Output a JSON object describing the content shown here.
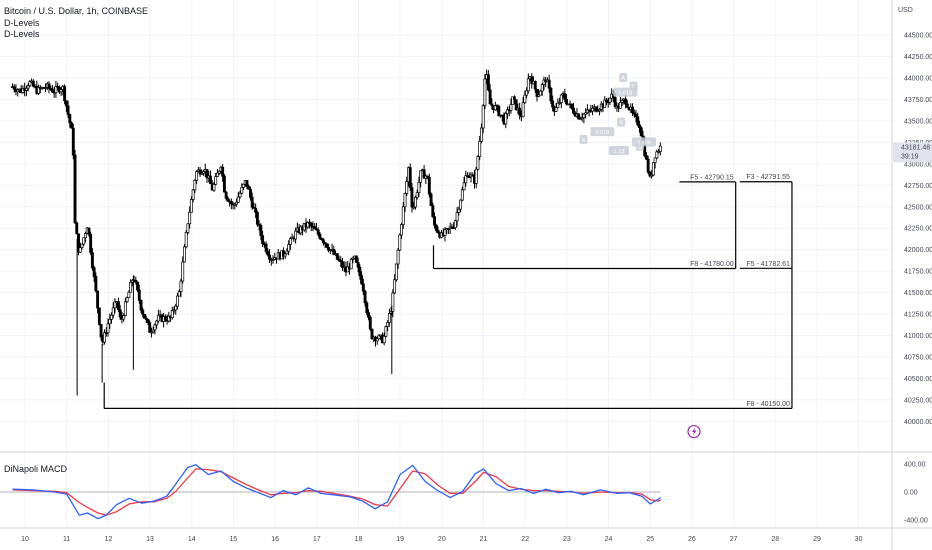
{
  "header": {
    "symbol": "Bitcoin / U.S. Dollar, 1h, COINBASE",
    "indicator_1": "D-Levels",
    "indicator_2": "D-Levels"
  },
  "macd_label": "DiNapoli MACD",
  "currency": "USD",
  "colors": {
    "candle": "#000000",
    "level_line": "#000000",
    "red_label": "#f23645",
    "green_label": "#089981",
    "macd_blue": "#2962ff",
    "macd_red": "#f23645",
    "grid": "#f0f3fa",
    "last_price_bg": "#e0e3eb",
    "alert_icon": "#9c27b0"
  },
  "chart_data": {
    "type": "candlestick",
    "ylim": [
      39700,
      44700
    ],
    "y_ticks": [
      "44500.00",
      "44250.00",
      "44000.00",
      "43750.00",
      "43500.00",
      "43250.00",
      "43000.00",
      "42750.00",
      "42500.00",
      "42250.00",
      "42000.00",
      "41750.00",
      "41500.00",
      "41250.00",
      "41000.00",
      "40750.00",
      "40500.00",
      "40250.00",
      "40000.00"
    ],
    "x_ticks": [
      {
        "label": "10",
        "pos": 9.6
      },
      {
        "label": "11",
        "pos": 10.6
      },
      {
        "label": "12",
        "pos": 11.6
      },
      {
        "label": "13",
        "pos": 12.6
      },
      {
        "label": "14",
        "pos": 13.6
      },
      {
        "label": "15",
        "pos": 14.6
      },
      {
        "label": "16",
        "pos": 15.6
      },
      {
        "label": "17",
        "pos": 16.6
      },
      {
        "label": "18",
        "pos": 17.6
      },
      {
        "label": "19",
        "pos": 18.6
      },
      {
        "label": "20",
        "pos": 19.6
      },
      {
        "label": "21",
        "pos": 20.6
      },
      {
        "label": "22",
        "pos": 21.6
      },
      {
        "label": "23",
        "pos": 22.6
      },
      {
        "label": "24",
        "pos": 23.6
      },
      {
        "label": "25",
        "pos": 24.6
      },
      {
        "label": "26",
        "pos": 25.6
      },
      {
        "label": "27",
        "pos": 26.6
      },
      {
        "label": "28",
        "pos": 27.6
      },
      {
        "label": "29",
        "pos": 28.6
      },
      {
        "label": "30",
        "pos": 29.6
      }
    ],
    "price_path": [
      [
        9.3,
        43900
      ],
      [
        9.5,
        43850
      ],
      [
        9.7,
        43950
      ],
      [
        9.9,
        43850
      ],
      [
        10.1,
        43900
      ],
      [
        10.3,
        43850
      ],
      [
        10.5,
        43900
      ],
      [
        10.75,
        43300
      ],
      [
        10.8,
        42300
      ],
      [
        10.9,
        41950
      ],
      [
        11.1,
        42300
      ],
      [
        11.25,
        41700
      ],
      [
        11.45,
        40900
      ],
      [
        11.6,
        41150
      ],
      [
        11.8,
        41400
      ],
      [
        11.9,
        41150
      ],
      [
        12.2,
        41700
      ],
      [
        12.4,
        41300
      ],
      [
        12.6,
        41050
      ],
      [
        12.8,
        41200
      ],
      [
        13.1,
        41200
      ],
      [
        13.3,
        41500
      ],
      [
        13.5,
        42300
      ],
      [
        13.7,
        42900
      ],
      [
        13.9,
        42950
      ],
      [
        14.1,
        42700
      ],
      [
        14.3,
        43000
      ],
      [
        14.4,
        42650
      ],
      [
        14.6,
        42500
      ],
      [
        14.9,
        42800
      ],
      [
        15.1,
        42450
      ],
      [
        15.3,
        42100
      ],
      [
        15.5,
        41900
      ],
      [
        15.8,
        41950
      ],
      [
        16.1,
        42200
      ],
      [
        16.4,
        42300
      ],
      [
        16.7,
        42150
      ],
      [
        17,
        41950
      ],
      [
        17.3,
        41750
      ],
      [
        17.5,
        41900
      ],
      [
        17.7,
        41600
      ],
      [
        17.9,
        41000
      ],
      [
        18.2,
        40950
      ],
      [
        18.4,
        41350
      ],
      [
        18.6,
        42200
      ],
      [
        18.8,
        42950
      ],
      [
        18.9,
        42450
      ],
      [
        19.1,
        42900
      ],
      [
        19.25,
        42850
      ],
      [
        19.4,
        42300
      ],
      [
        19.6,
        42150
      ],
      [
        19.9,
        42300
      ],
      [
        20.2,
        42900
      ],
      [
        20.4,
        42800
      ],
      [
        20.55,
        43450
      ],
      [
        20.65,
        44100
      ],
      [
        20.75,
        43700
      ],
      [
        20.9,
        43650
      ],
      [
        21.1,
        43500
      ],
      [
        21.3,
        43750
      ],
      [
        21.5,
        43550
      ],
      [
        21.7,
        44050
      ],
      [
        21.9,
        43800
      ],
      [
        22.1,
        44000
      ],
      [
        22.3,
        43600
      ],
      [
        22.5,
        43800
      ],
      [
        22.7,
        43650
      ],
      [
        22.9,
        43550
      ],
      [
        23.1,
        43600
      ],
      [
        23.3,
        43650
      ],
      [
        23.5,
        43700
      ],
      [
        23.7,
        43800
      ],
      [
        23.8,
        43650
      ],
      [
        24,
        43750
      ],
      [
        24.2,
        43550
      ],
      [
        24.35,
        43450
      ],
      [
        24.5,
        43050
      ],
      [
        24.6,
        42800
      ],
      [
        24.7,
        43100
      ],
      [
        24.85,
        43200
      ]
    ],
    "marked_lows": [
      [
        10.85,
        40300
      ],
      [
        11.45,
        40450
      ],
      [
        12.2,
        40600
      ],
      [
        18.4,
        40550
      ]
    ],
    "levels": [
      {
        "label": "F5 - 42790.15",
        "price": 42790.15,
        "color": "red",
        "x_from": 25.3,
        "x_to": 26.65
      },
      {
        "label": "F3 - 42791.55",
        "price": 42791.55,
        "color": "green",
        "x_from": 26.75,
        "x_to": 28.0
      },
      {
        "label": "F8 - 41780.00",
        "price": 41780.0,
        "color": "black",
        "x_from": 19.4,
        "x_to": 26.65
      },
      {
        "label": "F5 - 41782.61",
        "price": 41782.61,
        "color": "red",
        "x_from": 26.75,
        "x_to": 28.0
      },
      {
        "label": "F8 - 40150.00",
        "price": 40150.0,
        "color": "black",
        "x_from": 11.5,
        "x_to": 28.0
      }
    ],
    "pattern_labels": [
      {
        "text": "X",
        "x": 23.0,
        "y": 43280
      },
      {
        "text": "A",
        "x": 23.95,
        "y": 44000
      },
      {
        "text": "B",
        "x": 23.9,
        "y": 43480
      },
      {
        "text": "C",
        "x": 24.2,
        "y": 43900
      },
      {
        "text": "D",
        "x": 24.35,
        "y": 43200
      },
      {
        "text": "0.618",
        "x": 24.0,
        "y": 43830
      },
      {
        "text": "0.618",
        "x": 23.45,
        "y": 43370
      },
      {
        "text": "1.13",
        "x": 23.85,
        "y": 43150
      },
      {
        "text": "0.886",
        "x": 24.45,
        "y": 43250
      }
    ],
    "last_price": "43181.48",
    "countdown": "39:19",
    "macd": {
      "ylim": [
        -500,
        500
      ],
      "ticks": [
        "400.00",
        "0.00",
        "-400.00"
      ],
      "fast": [
        [
          9.3,
          40
        ],
        [
          9.8,
          30
        ],
        [
          10.3,
          0
        ],
        [
          10.6,
          -30
        ],
        [
          10.9,
          -330
        ],
        [
          11.1,
          -300
        ],
        [
          11.35,
          -380
        ],
        [
          11.55,
          -330
        ],
        [
          11.8,
          -180
        ],
        [
          12.1,
          -90
        ],
        [
          12.4,
          -160
        ],
        [
          12.7,
          -130
        ],
        [
          13,
          -60
        ],
        [
          13.2,
          100
        ],
        [
          13.5,
          350
        ],
        [
          13.7,
          390
        ],
        [
          14,
          250
        ],
        [
          14.3,
          300
        ],
        [
          14.6,
          150
        ],
        [
          14.9,
          60
        ],
        [
          15.2,
          -10
        ],
        [
          15.5,
          -80
        ],
        [
          15.8,
          20
        ],
        [
          16.1,
          -40
        ],
        [
          16.4,
          60
        ],
        [
          16.7,
          -20
        ],
        [
          17.0,
          -40
        ],
        [
          17.4,
          -70
        ],
        [
          17.7,
          -130
        ],
        [
          18,
          -240
        ],
        [
          18.3,
          -140
        ],
        [
          18.6,
          250
        ],
        [
          18.9,
          380
        ],
        [
          19.2,
          150
        ],
        [
          19.5,
          20
        ],
        [
          19.8,
          -80
        ],
        [
          20.1,
          10
        ],
        [
          20.4,
          260
        ],
        [
          20.6,
          330
        ],
        [
          20.9,
          120
        ],
        [
          21.2,
          20
        ],
        [
          21.5,
          50
        ],
        [
          21.8,
          -20
        ],
        [
          22.1,
          40
        ],
        [
          22.4,
          -10
        ],
        [
          22.7,
          10
        ],
        [
          23,
          -40
        ],
        [
          23.4,
          30
        ],
        [
          23.8,
          -20
        ],
        [
          24.1,
          -10
        ],
        [
          24.4,
          -60
        ],
        [
          24.6,
          -170
        ],
        [
          24.8,
          -100
        ],
        [
          24.85,
          -80
        ]
      ],
      "slow": [
        [
          9.3,
          30
        ],
        [
          9.8,
          20
        ],
        [
          10.3,
          10
        ],
        [
          10.6,
          -10
        ],
        [
          10.9,
          -150
        ],
        [
          11.1,
          -220
        ],
        [
          11.35,
          -300
        ],
        [
          11.55,
          -330
        ],
        [
          11.8,
          -280
        ],
        [
          12.1,
          -170
        ],
        [
          12.4,
          -140
        ],
        [
          12.7,
          -140
        ],
        [
          13,
          -90
        ],
        [
          13.2,
          0
        ],
        [
          13.5,
          200
        ],
        [
          13.7,
          330
        ],
        [
          14,
          320
        ],
        [
          14.3,
          290
        ],
        [
          14.6,
          200
        ],
        [
          14.9,
          110
        ],
        [
          15.2,
          30
        ],
        [
          15.5,
          -40
        ],
        [
          15.8,
          -20
        ],
        [
          16.1,
          -10
        ],
        [
          16.4,
          20
        ],
        [
          16.7,
          10
        ],
        [
          17.0,
          -20
        ],
        [
          17.4,
          -60
        ],
        [
          17.7,
          -100
        ],
        [
          18,
          -180
        ],
        [
          18.3,
          -200
        ],
        [
          18.6,
          50
        ],
        [
          18.9,
          300
        ],
        [
          19.2,
          260
        ],
        [
          19.5,
          100
        ],
        [
          19.8,
          -20
        ],
        [
          20.1,
          -20
        ],
        [
          20.4,
          150
        ],
        [
          20.6,
          280
        ],
        [
          20.9,
          220
        ],
        [
          21.2,
          80
        ],
        [
          21.5,
          40
        ],
        [
          21.8,
          20
        ],
        [
          22.1,
          20
        ],
        [
          22.4,
          10
        ],
        [
          22.7,
          0
        ],
        [
          23,
          -20
        ],
        [
          23.4,
          0
        ],
        [
          23.8,
          -10
        ],
        [
          24.1,
          -10
        ],
        [
          24.4,
          -30
        ],
        [
          24.6,
          -110
        ],
        [
          24.8,
          -130
        ],
        [
          24.85,
          -110
        ]
      ]
    }
  }
}
